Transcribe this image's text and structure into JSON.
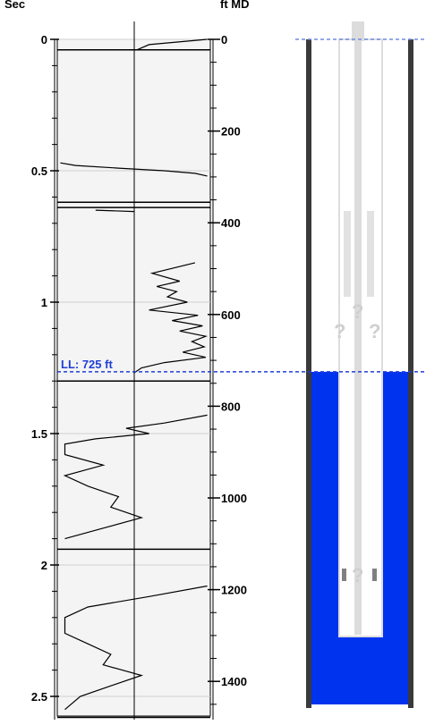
{
  "header": {
    "time_axis_label": "Sec",
    "depth_axis_label": "ft MD"
  },
  "liquid_level": {
    "label": "LL: 725 ft",
    "depth_ft": 725,
    "color": "#1f3fd6"
  },
  "well_diagram": {
    "fluid_color": "#0033ee",
    "unknown_markers": [
      "?",
      "?",
      "?",
      "?",
      "?",
      "?"
    ]
  },
  "chart_data": {
    "type": "line",
    "time_axis": {
      "label": "Sec",
      "ticks": [
        0,
        0.5,
        1,
        1.5,
        2,
        2.5
      ],
      "tick_labels": [
        "0",
        "0.5",
        "1",
        "1.5",
        "2",
        "2.5"
      ],
      "range": [
        0,
        2.6
      ]
    },
    "depth_axis": {
      "label": "ft MD",
      "ticks": [
        0,
        200,
        400,
        600,
        800,
        1000,
        1200,
        1400
      ],
      "tick_labels": [
        "0",
        "200",
        "400",
        "600",
        "800",
        "1000",
        "1200",
        "1400"
      ],
      "range": [
        0,
        1520
      ]
    },
    "grid": true,
    "traces": [
      {
        "t": [
          0.0,
          0.02,
          0.04
        ],
        "x": [
          0.98,
          0.6,
          0.52
        ]
      },
      {
        "t": [
          0.47,
          0.48,
          0.49,
          0.5,
          0.51,
          0.52
        ],
        "x": [
          0.02,
          0.12,
          0.4,
          0.7,
          0.9,
          0.98
        ]
      },
      {
        "t": [
          0.65,
          0.655
        ],
        "x": [
          0.25,
          0.5
        ]
      },
      {
        "t": [
          0.85,
          0.89,
          0.92,
          0.94,
          0.96,
          0.98,
          1.0,
          1.03,
          1.05,
          1.07,
          1.09,
          1.11,
          1.13,
          1.15,
          1.17,
          1.19,
          1.21,
          1.23,
          1.25,
          1.27
        ],
        "x": [
          0.9,
          0.62,
          0.8,
          0.65,
          0.78,
          0.72,
          0.85,
          0.6,
          0.92,
          0.75,
          0.95,
          0.8,
          0.97,
          0.88,
          0.96,
          0.82,
          0.97,
          0.7,
          0.55,
          0.5
        ]
      },
      {
        "t": [
          1.43,
          1.46,
          1.48,
          1.5,
          1.52,
          1.54,
          1.58,
          1.62,
          1.66,
          1.7,
          1.74,
          1.78,
          1.82,
          1.86,
          1.9
        ],
        "x": [
          0.98,
          0.7,
          0.45,
          0.6,
          0.25,
          0.05,
          0.05,
          0.3,
          0.05,
          0.2,
          0.4,
          0.35,
          0.55,
          0.3,
          0.05
        ]
      },
      {
        "t": [
          2.08,
          2.12,
          2.16,
          2.2,
          2.26,
          2.3,
          2.34,
          2.38,
          2.42,
          2.46,
          2.5,
          2.55
        ],
        "x": [
          0.98,
          0.6,
          0.2,
          0.05,
          0.05,
          0.2,
          0.35,
          0.3,
          0.55,
          0.35,
          0.15,
          0.05
        ]
      }
    ],
    "joint_marks_sec": [
      0.04,
      0.62,
      0.64,
      1.3,
      1.94,
      2.58
    ]
  }
}
